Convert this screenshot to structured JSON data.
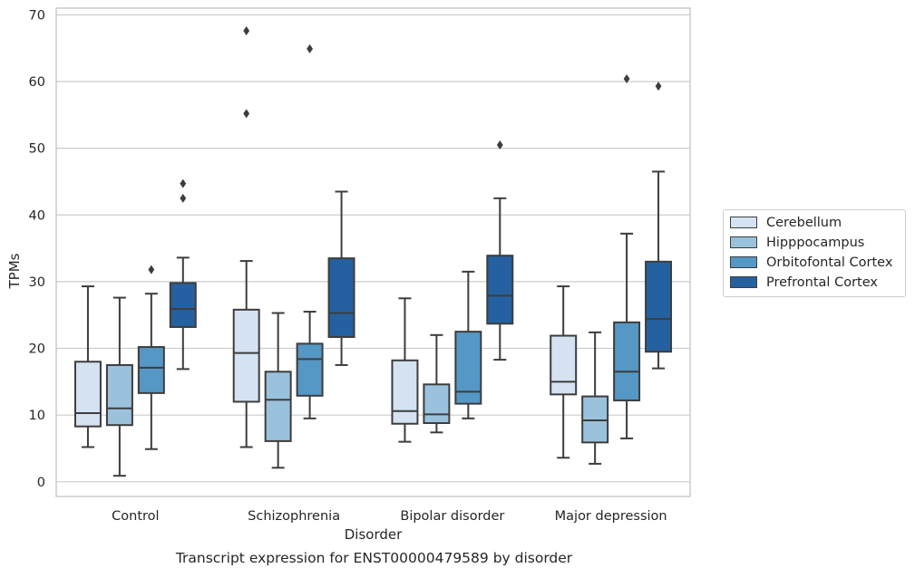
{
  "caption": "Transcript expression for ENST00000479589 by disorder",
  "chart_data": {
    "type": "boxplot",
    "xlabel": "Disorder",
    "ylabel": "TPMs",
    "ylim": [
      -2.2,
      71
    ],
    "yticks": [
      0,
      10,
      20,
      30,
      40,
      50,
      60,
      70
    ],
    "grid": true,
    "legend_position": "right",
    "categories": [
      "Control",
      "Schizophrenia",
      "Bipolar disorder",
      "Major depression"
    ],
    "series": [
      {
        "name": "Cerebellum",
        "color": "#d4e2f1",
        "boxes": [
          {
            "whislo": 5.2,
            "q1": 8.3,
            "med": 10.3,
            "q3": 18.0,
            "whishi": 29.3,
            "fliers": []
          },
          {
            "whislo": 5.2,
            "q1": 12.0,
            "med": 19.3,
            "q3": 25.8,
            "whishi": 33.1,
            "fliers": [
              55.2,
              67.6
            ]
          },
          {
            "whislo": 6.0,
            "q1": 8.7,
            "med": 10.6,
            "q3": 18.2,
            "whishi": 27.5,
            "fliers": []
          },
          {
            "whislo": 3.6,
            "q1": 13.1,
            "med": 15.0,
            "q3": 21.9,
            "whishi": 29.3,
            "fliers": []
          }
        ]
      },
      {
        "name": "Hipppocampus",
        "color": "#9ac2dc",
        "boxes": [
          {
            "whislo": 0.9,
            "q1": 8.5,
            "med": 11.0,
            "q3": 17.5,
            "whishi": 27.6,
            "fliers": []
          },
          {
            "whislo": 2.1,
            "q1": 6.1,
            "med": 12.3,
            "q3": 16.5,
            "whishi": 25.3,
            "fliers": []
          },
          {
            "whislo": 7.4,
            "q1": 8.8,
            "med": 10.1,
            "q3": 14.6,
            "whishi": 22.0,
            "fliers": []
          },
          {
            "whislo": 2.7,
            "q1": 5.9,
            "med": 9.2,
            "q3": 12.8,
            "whishi": 22.4,
            "fliers": []
          }
        ]
      },
      {
        "name": "Orbitofontal Cortex",
        "color": "#5597c5",
        "boxes": [
          {
            "whislo": 4.9,
            "q1": 13.3,
            "med": 17.1,
            "q3": 20.2,
            "whishi": 28.2,
            "fliers": [
              31.8
            ]
          },
          {
            "whislo": 9.5,
            "q1": 12.9,
            "med": 18.4,
            "q3": 20.7,
            "whishi": 25.5,
            "fliers": [
              64.9
            ]
          },
          {
            "whislo": 9.5,
            "q1": 11.7,
            "med": 13.5,
            "q3": 22.5,
            "whishi": 31.5,
            "fliers": []
          },
          {
            "whislo": 6.5,
            "q1": 12.2,
            "med": 16.5,
            "q3": 23.9,
            "whishi": 37.2,
            "fliers": [
              60.4
            ]
          }
        ]
      },
      {
        "name": "Prefrontal Cortex",
        "color": "#2561a0",
        "boxes": [
          {
            "whislo": 16.9,
            "q1": 23.2,
            "med": 25.9,
            "q3": 29.8,
            "whishi": 33.6,
            "fliers": [
              42.5,
              44.7
            ]
          },
          {
            "whislo": 17.5,
            "q1": 21.7,
            "med": 25.3,
            "q3": 33.5,
            "whishi": 43.5,
            "fliers": []
          },
          {
            "whislo": 18.3,
            "q1": 23.7,
            "med": 27.9,
            "q3": 33.9,
            "whishi": 42.5,
            "fliers": [
              50.5
            ]
          },
          {
            "whislo": 17.0,
            "q1": 19.5,
            "med": 24.4,
            "q3": 33.0,
            "whishi": 46.5,
            "fliers": [
              59.3
            ]
          }
        ]
      }
    ]
  }
}
